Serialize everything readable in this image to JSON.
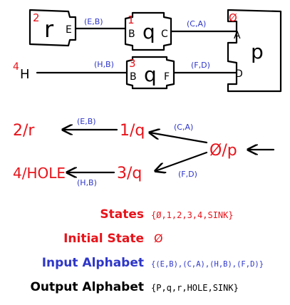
{
  "colors": {
    "red": "#e8131a",
    "blue": "#2e36c8",
    "black": "#000000"
  },
  "circuit": {
    "r_box": {
      "id": "2",
      "name": "r",
      "port_out": "E"
    },
    "q1_box": {
      "id": "1",
      "name": "q",
      "port_in": "B",
      "port_out": "C"
    },
    "q3_box": {
      "id": "3",
      "name": "q",
      "port_in": "B",
      "port_out": "F"
    },
    "p_box": {
      "id": "Ø",
      "name": "p",
      "port_a": "A",
      "port_d": "D"
    },
    "hole": {
      "id": "4",
      "name": "H"
    },
    "wire_eb": "(E,B)",
    "wire_ca": "(C,A)",
    "wire_hb": "(H,B)",
    "wire_fd": "(F,D)"
  },
  "fsm": {
    "state_2": "2/r",
    "state_1": "1/q",
    "state_0": "Ø/p",
    "state_4": "4/HOLE",
    "state_3": "3/q",
    "edge_1_2": "(E,B)",
    "edge_0_1": "(C,A)",
    "edge_0_3": "(F,D)",
    "edge_3_4": "(H,B)"
  },
  "definitions": {
    "states_label": "States",
    "states_value": "{Ø,1,2,3,4,SINK}",
    "initial_label": "Initial State",
    "initial_value": "Ø",
    "input_label": "Input Alphabet",
    "input_value": "{(E,B),(C,A),(H,B),(F,D)}",
    "output_label": "Output Alphabet",
    "output_value": "{P,q,r,HOLE,SINK}"
  }
}
